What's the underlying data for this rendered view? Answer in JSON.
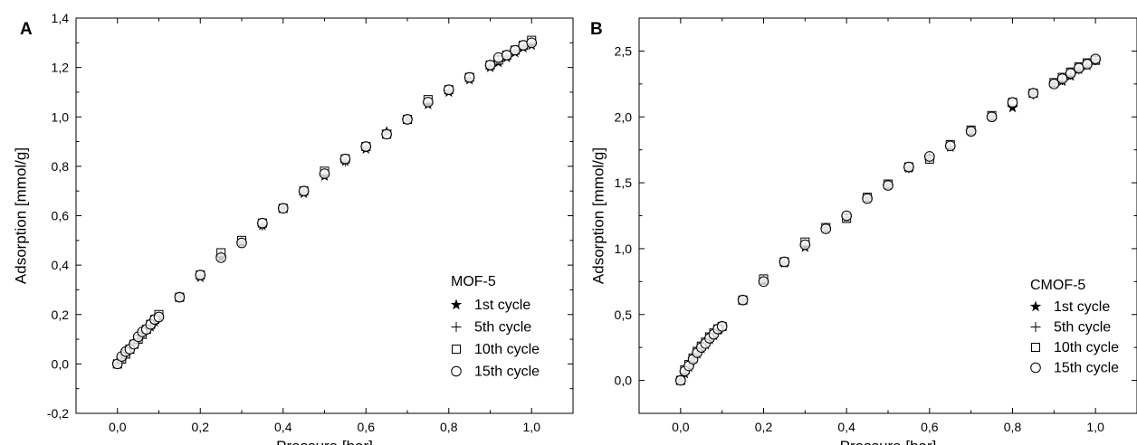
{
  "chart_data": [
    {
      "type": "scatter",
      "panel_label": "A",
      "xlabel": "Pressure [bar]",
      "ylabel": "Adsorption [mmol/g]",
      "xlim": [
        -0.1,
        1.1
      ],
      "ylim": [
        -0.2,
        1.4
      ],
      "x_ticks": [
        "0,0",
        "0,2",
        "0,4",
        "0,6",
        "0,8",
        "1,0"
      ],
      "x_tick_values": [
        0,
        0.2,
        0.4,
        0.6,
        0.8,
        1.0
      ],
      "y_ticks": [
        "-0,2",
        "0,0",
        "0,2",
        "0,4",
        "0,6",
        "0,8",
        "1,0",
        "1,2",
        "1,4"
      ],
      "y_tick_values": [
        -0.2,
        0,
        0.2,
        0.4,
        0.6,
        0.8,
        1.0,
        1.2,
        1.4
      ],
      "legend": {
        "title": "MOF-5",
        "placement": "bottom-right"
      },
      "series": [
        {
          "name": "1st cycle",
          "marker": "star",
          "x": [
            0,
            0.01,
            0.02,
            0.03,
            0.04,
            0.05,
            0.06,
            0.07,
            0.08,
            0.09,
            0.1,
            0.15,
            0.2,
            0.25,
            0.3,
            0.35,
            0.4,
            0.45,
            0.5,
            0.55,
            0.6,
            0.65,
            0.7,
            0.75,
            0.8,
            0.85,
            0.9,
            0.92,
            0.94,
            0.96,
            0.98,
            1.0
          ],
          "y": [
            0,
            0.02,
            0.04,
            0.06,
            0.08,
            0.1,
            0.12,
            0.14,
            0.15,
            0.17,
            0.19,
            0.27,
            0.35,
            0.43,
            0.49,
            0.56,
            0.63,
            0.69,
            0.76,
            0.82,
            0.87,
            0.94,
            0.99,
            1.05,
            1.1,
            1.15,
            1.2,
            1.22,
            1.24,
            1.26,
            1.28,
            1.29
          ]
        },
        {
          "name": "5th cycle",
          "marker": "plus",
          "x": [
            0,
            0.01,
            0.02,
            0.03,
            0.04,
            0.05,
            0.06,
            0.07,
            0.08,
            0.09,
            0.1,
            0.15,
            0.2,
            0.25,
            0.3,
            0.35,
            0.4,
            0.45,
            0.5,
            0.55,
            0.6,
            0.65,
            0.7,
            0.75,
            0.8,
            0.85,
            0.9,
            0.92,
            0.94,
            0.96,
            0.98,
            1.0
          ],
          "y": [
            0,
            0.02,
            0.04,
            0.06,
            0.08,
            0.1,
            0.12,
            0.14,
            0.15,
            0.17,
            0.19,
            0.27,
            0.36,
            0.44,
            0.49,
            0.56,
            0.63,
            0.7,
            0.77,
            0.82,
            0.88,
            0.93,
            0.99,
            1.06,
            1.11,
            1.16,
            1.21,
            1.23,
            1.25,
            1.27,
            1.29,
            1.3
          ]
        },
        {
          "name": "10th cycle",
          "marker": "square",
          "x": [
            0,
            0.01,
            0.02,
            0.03,
            0.04,
            0.05,
            0.06,
            0.07,
            0.08,
            0.09,
            0.1,
            0.15,
            0.2,
            0.25,
            0.3,
            0.35,
            0.4,
            0.45,
            0.5,
            0.55,
            0.6,
            0.65,
            0.7,
            0.75,
            0.8,
            0.85,
            0.9,
            0.92,
            0.94,
            0.96,
            0.98,
            1.0
          ],
          "y": [
            0,
            0.02,
            0.04,
            0.06,
            0.08,
            0.1,
            0.12,
            0.14,
            0.16,
            0.18,
            0.2,
            0.27,
            0.36,
            0.45,
            0.5,
            0.57,
            0.63,
            0.7,
            0.78,
            0.83,
            0.88,
            0.93,
            0.99,
            1.07,
            1.11,
            1.16,
            1.21,
            1.23,
            1.25,
            1.27,
            1.29,
            1.31
          ]
        },
        {
          "name": "15th cycle",
          "marker": "circle",
          "x": [
            0,
            0.01,
            0.02,
            0.03,
            0.04,
            0.05,
            0.06,
            0.07,
            0.08,
            0.09,
            0.1,
            0.15,
            0.2,
            0.25,
            0.3,
            0.35,
            0.4,
            0.45,
            0.5,
            0.55,
            0.6,
            0.65,
            0.7,
            0.75,
            0.8,
            0.85,
            0.9,
            0.92,
            0.94,
            0.96,
            0.98,
            1.0
          ],
          "y": [
            0,
            0.03,
            0.05,
            0.06,
            0.08,
            0.11,
            0.13,
            0.14,
            0.16,
            0.18,
            0.19,
            0.27,
            0.36,
            0.43,
            0.49,
            0.57,
            0.63,
            0.7,
            0.77,
            0.83,
            0.88,
            0.93,
            0.99,
            1.06,
            1.11,
            1.16,
            1.21,
            1.24,
            1.25,
            1.27,
            1.29,
            1.3
          ]
        }
      ]
    },
    {
      "type": "scatter",
      "panel_label": "B",
      "xlabel": "Pressure [bar]",
      "ylabel": "Adsorption [mmol/g]",
      "xlim": [
        -0.1,
        1.1
      ],
      "ylim": [
        -0.25,
        2.75
      ],
      "x_ticks": [
        "0,0",
        "0,2",
        "0,4",
        "0,6",
        "0,8",
        "1,0"
      ],
      "x_tick_values": [
        0,
        0.2,
        0.4,
        0.6,
        0.8,
        1.0
      ],
      "y_ticks": [
        "0,0",
        "0,5",
        "1,0",
        "1,5",
        "2,0",
        "2,5"
      ],
      "y_tick_values": [
        0,
        0.5,
        1.0,
        1.5,
        2.0,
        2.5
      ],
      "legend": {
        "title": "CMOF-5",
        "placement": "bottom-right"
      },
      "series": [
        {
          "name": "1st cycle",
          "marker": "star",
          "x": [
            0,
            0.01,
            0.02,
            0.03,
            0.04,
            0.05,
            0.06,
            0.07,
            0.08,
            0.09,
            0.1,
            0.15,
            0.2,
            0.25,
            0.3,
            0.35,
            0.4,
            0.45,
            0.5,
            0.55,
            0.6,
            0.65,
            0.7,
            0.75,
            0.8,
            0.85,
            0.9,
            0.92,
            0.94,
            0.96,
            0.98,
            1.0
          ],
          "y": [
            0,
            0.05,
            0.1,
            0.16,
            0.2,
            0.24,
            0.27,
            0.31,
            0.34,
            0.38,
            0.41,
            0.61,
            0.75,
            0.89,
            1.01,
            1.15,
            1.23,
            1.38,
            1.48,
            1.61,
            1.69,
            1.77,
            1.89,
            2.0,
            2.07,
            2.18,
            2.25,
            2.27,
            2.31,
            2.36,
            2.39,
            2.43
          ]
        },
        {
          "name": "5th cycle",
          "marker": "plus",
          "x": [
            0,
            0.01,
            0.02,
            0.03,
            0.04,
            0.05,
            0.06,
            0.07,
            0.08,
            0.09,
            0.1,
            0.15,
            0.2,
            0.25,
            0.3,
            0.35,
            0.4,
            0.45,
            0.5,
            0.55,
            0.6,
            0.65,
            0.7,
            0.75,
            0.8,
            0.85,
            0.9,
            0.92,
            0.94,
            0.96,
            0.98,
            1.0
          ],
          "y": [
            0,
            0.06,
            0.11,
            0.17,
            0.21,
            0.25,
            0.28,
            0.32,
            0.35,
            0.39,
            0.41,
            0.61,
            0.76,
            0.9,
            1.03,
            1.15,
            1.24,
            1.38,
            1.48,
            1.61,
            1.68,
            1.78,
            1.89,
            2.0,
            2.09,
            2.17,
            2.25,
            2.28,
            2.32,
            2.36,
            2.4,
            2.43
          ]
        },
        {
          "name": "10th cycle",
          "marker": "square",
          "x": [
            0,
            0.01,
            0.02,
            0.03,
            0.04,
            0.05,
            0.06,
            0.07,
            0.08,
            0.09,
            0.1,
            0.15,
            0.2,
            0.25,
            0.3,
            0.35,
            0.4,
            0.45,
            0.5,
            0.55,
            0.6,
            0.65,
            0.7,
            0.75,
            0.8,
            0.85,
            0.9,
            0.92,
            0.94,
            0.96,
            0.98,
            1.0
          ],
          "y": [
            0,
            0.08,
            0.12,
            0.17,
            0.22,
            0.26,
            0.29,
            0.33,
            0.36,
            0.39,
            0.41,
            0.61,
            0.77,
            0.9,
            1.05,
            1.16,
            1.23,
            1.39,
            1.49,
            1.62,
            1.68,
            1.79,
            1.9,
            2.01,
            2.11,
            2.18,
            2.26,
            2.3,
            2.34,
            2.38,
            2.41,
            2.43
          ]
        },
        {
          "name": "15th cycle",
          "marker": "circle",
          "x": [
            0,
            0.01,
            0.02,
            0.03,
            0.04,
            0.05,
            0.06,
            0.07,
            0.08,
            0.09,
            0.1,
            0.15,
            0.2,
            0.25,
            0.3,
            0.35,
            0.4,
            0.45,
            0.5,
            0.55,
            0.6,
            0.65,
            0.7,
            0.75,
            0.8,
            0.85,
            0.9,
            0.92,
            0.94,
            0.96,
            0.98,
            1.0
          ],
          "y": [
            0,
            0.07,
            0.11,
            0.16,
            0.21,
            0.25,
            0.28,
            0.32,
            0.35,
            0.39,
            0.41,
            0.61,
            0.75,
            0.9,
            1.03,
            1.15,
            1.25,
            1.38,
            1.48,
            1.62,
            1.7,
            1.78,
            1.89,
            2.0,
            2.11,
            2.18,
            2.25,
            2.29,
            2.33,
            2.37,
            2.4,
            2.44
          ]
        }
      ]
    }
  ]
}
